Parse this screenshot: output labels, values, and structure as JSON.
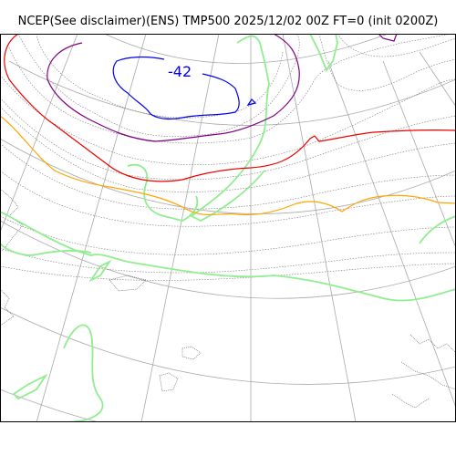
{
  "title": "NCEP(See disclaimer)(ENS) TMP500 2025/12/02 00Z FT=0 (init 0200Z)",
  "contour_label": "-42",
  "colors": {
    "graticule": "#a9a9a9",
    "coastline": "#555555",
    "isotherm_thin": "#777777",
    "isotherm_blue": "#0000ee",
    "isotherm_purple": "#800080",
    "isotherm_red": "#ee0000",
    "isotherm_orange": "#ffa500",
    "isotherm_green": "#90ee90",
    "frame": "#000000",
    "background": "#ffffff"
  }
}
